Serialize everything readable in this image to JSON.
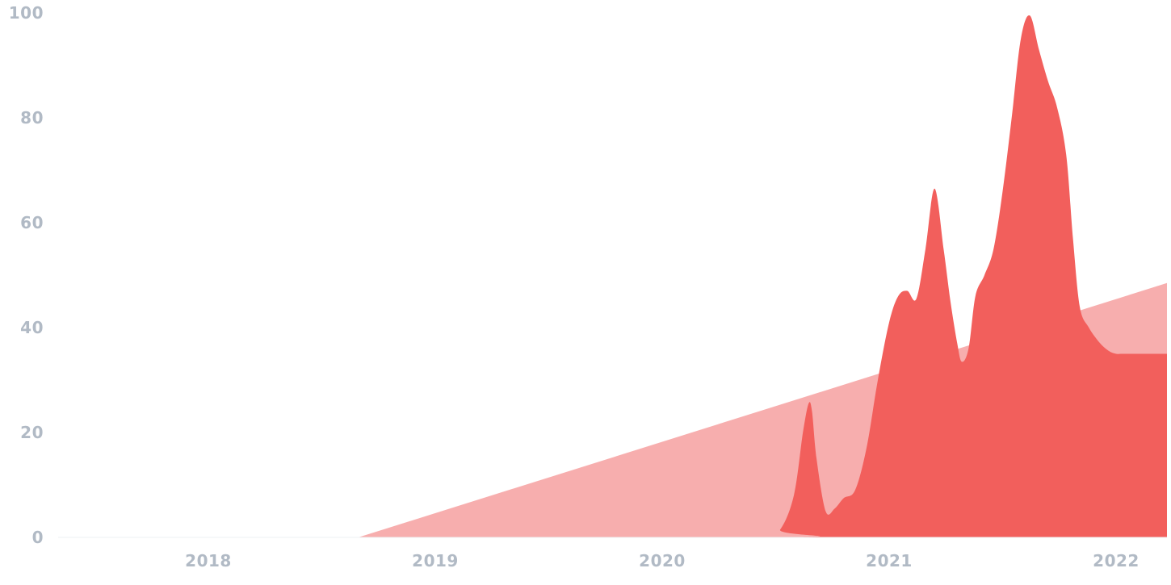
{
  "chart_data": {
    "type": "area",
    "title": "",
    "xlabel": "",
    "ylabel": "",
    "xlim": [
      2017.4,
      2022.25
    ],
    "ylim": [
      0,
      100
    ],
    "grid": false,
    "y_ticks": [
      {
        "value": 0,
        "label": "0"
      },
      {
        "value": 20,
        "label": "20"
      },
      {
        "value": 40,
        "label": "40"
      },
      {
        "value": 60,
        "label": "60"
      },
      {
        "value": 80,
        "label": "80"
      },
      {
        "value": 100,
        "label": "100"
      }
    ],
    "x_ticks": [
      {
        "value": 2018,
        "label": "2018"
      },
      {
        "value": 2019,
        "label": "2019"
      },
      {
        "value": 2020,
        "label": "2020"
      },
      {
        "value": 2021,
        "label": "2021"
      },
      {
        "value": 2022,
        "label": "2022"
      }
    ],
    "series": [
      {
        "color": "#f7aeae",
        "x": [
          2017.4,
          2018.66,
          2022.25
        ],
        "y": [
          0,
          0,
          48.5
        ]
      },
      {
        "color": "#f25f5c",
        "x": [
          2017.4,
          2020.45,
          2020.52,
          2020.58,
          2020.62,
          2020.645,
          2020.66,
          2020.68,
          2020.72,
          2020.76,
          2020.8,
          2020.85,
          2020.9,
          2020.95,
          2021.0,
          2021.04,
          2021.08,
          2021.12,
          2021.16,
          2021.2,
          2021.24,
          2021.27,
          2021.3,
          2021.32,
          2021.35,
          2021.38,
          2021.42,
          2021.46,
          2021.5,
          2021.54,
          2021.58,
          2021.62,
          2021.66,
          2021.7,
          2021.74,
          2021.78,
          2021.81,
          2021.84,
          2021.88,
          2021.93,
          2021.97,
          2022.0,
          2022.02,
          2022.04,
          2022.07,
          2022.11,
          2022.15,
          2022.2,
          2022.25
        ],
        "y": [
          0,
          0,
          1.5,
          8,
          20,
          25.5,
          24,
          15,
          5,
          5.5,
          7.5,
          9,
          17,
          30,
          41,
          46,
          47,
          45.5,
          55,
          66.5,
          55,
          45,
          37,
          33.5,
          36,
          46,
          50,
          55,
          66,
          80,
          95,
          99.5,
          93,
          87,
          82,
          73,
          57,
          44,
          40,
          37,
          35.5,
          35,
          35,
          35,
          35,
          35,
          35,
          35,
          35
        ]
      }
    ]
  }
}
